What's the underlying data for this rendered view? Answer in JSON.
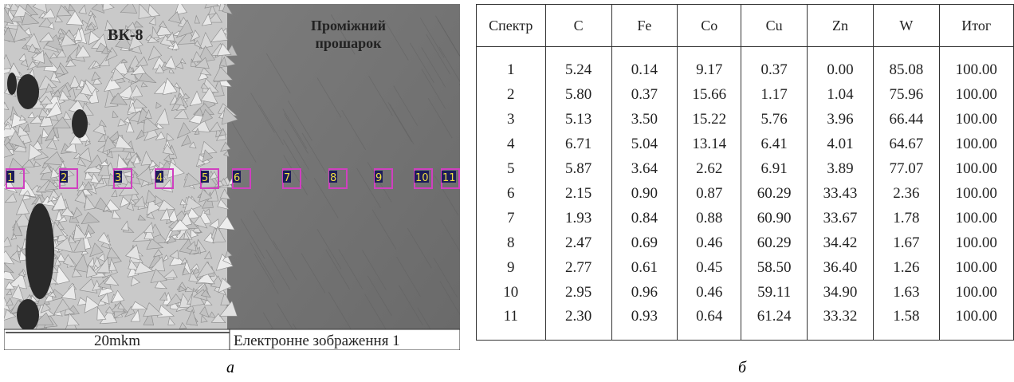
{
  "panel_a": {
    "region_left": "ВК-8",
    "region_right": [
      "Проміжний",
      "прошарок"
    ],
    "spectra": [
      "1",
      "2",
      "3",
      "4",
      "5",
      "6",
      "7",
      "8",
      "9",
      "10",
      "11"
    ],
    "scale_label": "20mkm",
    "image_caption": "Електронне зображення 1",
    "letter": "а"
  },
  "panel_b": {
    "letter": "б",
    "table": {
      "header": [
        "Спектр",
        "C",
        "Fe",
        "Co",
        "Cu",
        "Zn",
        "W",
        "Итог"
      ],
      "rows": [
        [
          "1",
          "5.24",
          "0.14",
          "9.17",
          "0.37",
          "0.00",
          "85.08",
          "100.00"
        ],
        [
          "2",
          "5.80",
          "0.37",
          "15.66",
          "1.17",
          "1.04",
          "75.96",
          "100.00"
        ],
        [
          "3",
          "5.13",
          "3.50",
          "15.22",
          "5.76",
          "3.96",
          "66.44",
          "100.00"
        ],
        [
          "4",
          "6.71",
          "5.04",
          "13.14",
          "6.41",
          "4.01",
          "64.67",
          "100.00"
        ],
        [
          "5",
          "5.87",
          "3.64",
          "2.62",
          "6.91",
          "3.89",
          "77.07",
          "100.00"
        ],
        [
          "6",
          "2.15",
          "0.90",
          "0.87",
          "60.29",
          "33.43",
          "2.36",
          "100.00"
        ],
        [
          "7",
          "1.93",
          "0.84",
          "0.88",
          "60.90",
          "33.67",
          "1.78",
          "100.00"
        ],
        [
          "8",
          "2.47",
          "0.69",
          "0.46",
          "60.29",
          "34.42",
          "1.67",
          "100.00"
        ],
        [
          "9",
          "2.77",
          "0.61",
          "0.45",
          "58.50",
          "36.40",
          "1.26",
          "100.00"
        ],
        [
          "10",
          "2.95",
          "0.96",
          "0.46",
          "59.11",
          "34.90",
          "1.63",
          "100.00"
        ],
        [
          "11",
          "2.30",
          "0.93",
          "0.64",
          "61.24",
          "33.32",
          "1.58",
          "100.00"
        ]
      ]
    }
  }
}
